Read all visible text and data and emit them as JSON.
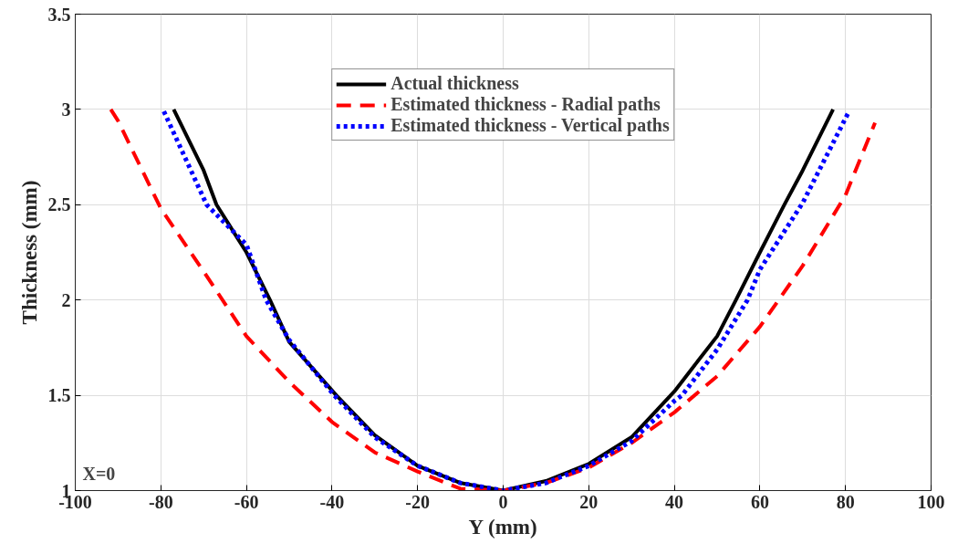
{
  "chart_data": {
    "type": "line",
    "xlabel": "Y (mm)",
    "ylabel": "Thickness (mm)",
    "xlim": [
      -100,
      100
    ],
    "ylim": [
      1,
      3.5
    ],
    "xticks": [
      -100,
      -80,
      -60,
      -40,
      -20,
      0,
      20,
      40,
      60,
      80,
      100
    ],
    "yticks": [
      1,
      1.5,
      2,
      2.5,
      3,
      3.5
    ],
    "grid": true,
    "legend": "top",
    "marker": "none",
    "annotations": [
      "X=0"
    ],
    "series": [
      {
        "name": "Actual thickness",
        "color": "#000000",
        "line_style": "solid",
        "x": [
          -77,
          -70,
          -67,
          -60,
          -54.5,
          -50,
          -39,
          -30,
          -20,
          -10,
          0,
          10,
          20,
          30,
          40,
          50,
          54.4,
          60,
          65.7,
          70,
          77.1
        ],
        "values": [
          3,
          2.68,
          2.5,
          2.25,
          2,
          1.78,
          1.5,
          1.29,
          1.13,
          1.04,
          1,
          1.05,
          1.14,
          1.28,
          1.52,
          1.81,
          2,
          2.25,
          2.5,
          2.68,
          3
        ]
      },
      {
        "name": "Estimated thickness - Radial paths",
        "color": "#ff0000",
        "line_style": "dashed",
        "x": [
          -91.7,
          -90,
          -80,
          -70,
          -60,
          -50,
          -40,
          -30,
          -20,
          -10,
          0,
          10,
          20,
          30,
          40,
          50,
          60,
          70,
          80,
          86.9
        ],
        "values": [
          3,
          2.94,
          2.48,
          2.15,
          1.81,
          1.57,
          1.36,
          1.2,
          1.1,
          1.01,
          1,
          1.04,
          1.12,
          1.25,
          1.41,
          1.6,
          1.86,
          2.18,
          2.55,
          2.93
        ]
      },
      {
        "name": "Estimated thickness - Vertical paths",
        "color": "#0000ff",
        "line_style": "dotted",
        "x": [
          -79.3,
          -69.3,
          -60,
          -55.4,
          -50,
          -39.5,
          -30,
          -20,
          -10,
          0,
          10,
          20,
          30,
          40,
          41.8,
          50,
          57.1,
          60,
          70,
          80.6
        ],
        "values": [
          2.99,
          2.5,
          2.29,
          2,
          1.79,
          1.5,
          1.28,
          1.13,
          1.04,
          1,
          1.04,
          1.13,
          1.26,
          1.47,
          1.5,
          1.74,
          2,
          2.16,
          2.51,
          2.98
        ]
      }
    ]
  }
}
